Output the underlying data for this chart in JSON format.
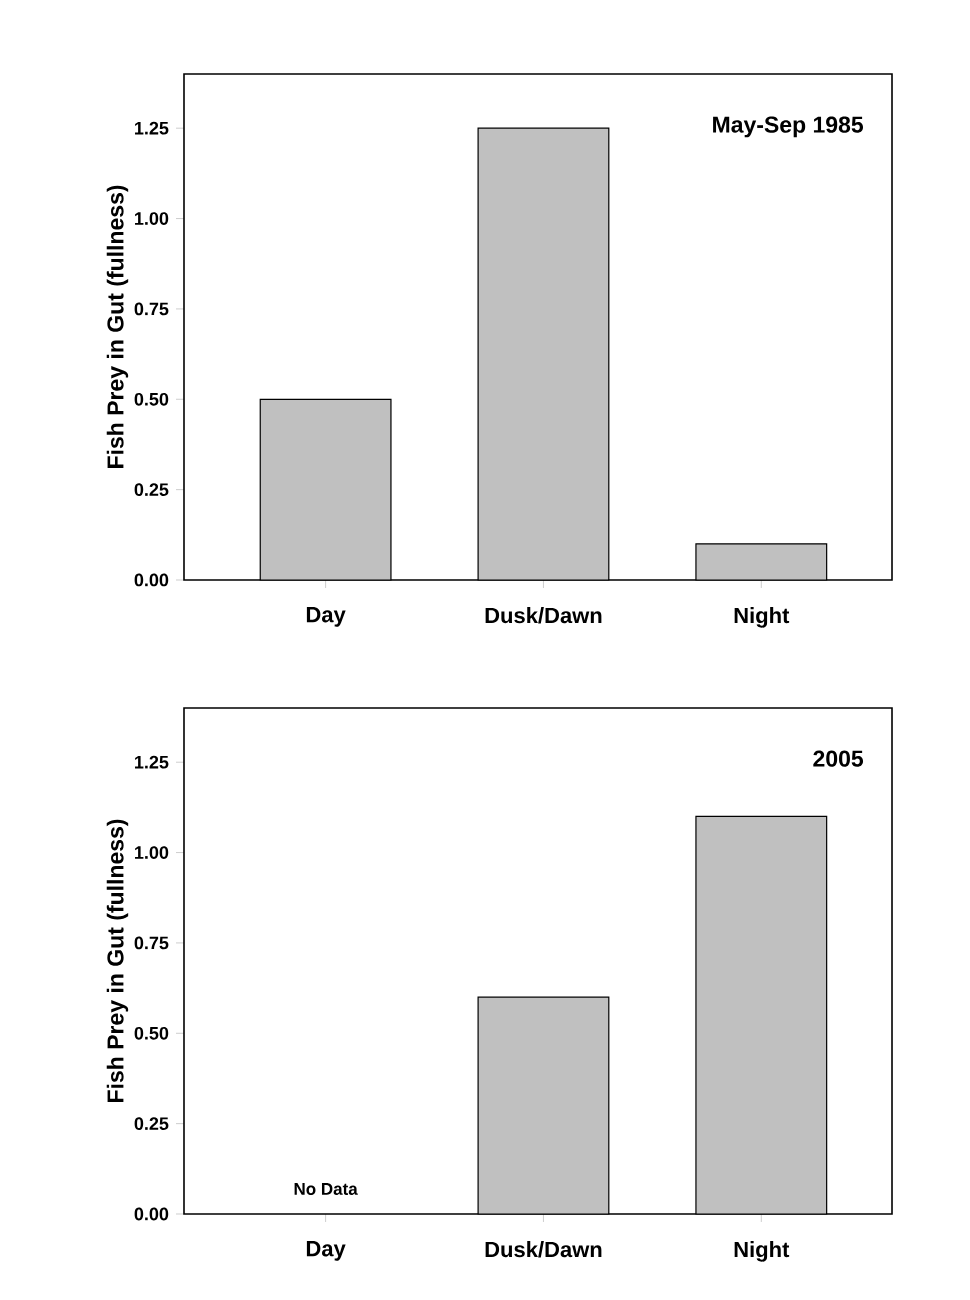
{
  "chart_data": [
    {
      "type": "bar",
      "title": "May-Sep 1985",
      "ylabel": "Fish Prey in Gut (fullness)",
      "categories": [
        "Day",
        "Dusk/Dawn",
        "Night"
      ],
      "values": [
        0.5,
        1.25,
        0.1
      ],
      "color": "#c0c0c0",
      "ylim": [
        0,
        1.4
      ],
      "yticks": [
        {
          "value": 0,
          "label": "0.00"
        },
        {
          "value": 0.25,
          "label": "0.25"
        },
        {
          "value": 0.5,
          "label": "0.50"
        },
        {
          "value": 0.75,
          "label": "0.75"
        },
        {
          "value": 1,
          "label": "1.00"
        },
        {
          "value": 1.25,
          "label": "1.25"
        }
      ]
    },
    {
      "type": "bar",
      "title": "2005",
      "ylabel": "Fish Prey in Gut (fullness)",
      "categories": [
        "Day",
        "Dusk/Dawn",
        "Night"
      ],
      "values": [
        null,
        0.6,
        1.1
      ],
      "color": "#c0c0c0",
      "ylim": [
        0,
        1.4
      ],
      "yticks": [
        {
          "value": 0,
          "label": "0.00"
        },
        {
          "value": 0.25,
          "label": "0.25"
        },
        {
          "value": 0.5,
          "label": "0.50"
        },
        {
          "value": 0.75,
          "label": "0.75"
        },
        {
          "value": 1,
          "label": "1.00"
        },
        {
          "value": 1.25,
          "label": "1.25"
        }
      ],
      "annotations": [
        "No Data"
      ]
    }
  ]
}
